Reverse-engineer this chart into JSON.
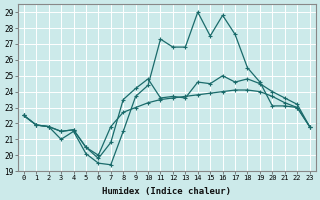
{
  "xlabel": "Humidex (Indice chaleur)",
  "xlim": [
    -0.5,
    23.5
  ],
  "ylim": [
    19,
    29.5
  ],
  "yticks": [
    19,
    20,
    21,
    22,
    23,
    24,
    25,
    26,
    27,
    28,
    29
  ],
  "xticks": [
    0,
    1,
    2,
    3,
    4,
    5,
    6,
    7,
    8,
    9,
    10,
    11,
    12,
    13,
    14,
    15,
    16,
    17,
    18,
    19,
    20,
    21,
    22,
    23
  ],
  "bg_color": "#cceaea",
  "grid_color": "#ffffff",
  "line_color": "#1a6b6b",
  "curve_top_y": [
    22.5,
    21.9,
    21.8,
    21.0,
    21.5,
    20.1,
    19.5,
    19.4,
    21.5,
    23.7,
    24.4,
    27.3,
    26.8,
    26.8,
    29.0,
    27.5,
    28.8,
    27.6,
    25.5,
    24.6,
    23.1,
    23.1,
    23.0,
    21.8
  ],
  "curve_mid_y": [
    22.5,
    21.9,
    21.8,
    21.5,
    21.6,
    20.5,
    19.8,
    20.8,
    23.5,
    24.2,
    24.8,
    23.6,
    23.7,
    23.6,
    24.6,
    24.5,
    25.0,
    24.6,
    24.8,
    24.5,
    24.0,
    23.6,
    23.2,
    21.8
  ],
  "curve_bot_y": [
    22.5,
    21.9,
    21.8,
    21.5,
    21.6,
    20.5,
    20.0,
    21.8,
    22.7,
    23.0,
    23.3,
    23.5,
    23.6,
    23.7,
    23.8,
    23.9,
    24.0,
    24.1,
    24.1,
    24.0,
    23.7,
    23.3,
    23.0,
    21.8
  ],
  "x": [
    0,
    1,
    2,
    3,
    4,
    5,
    6,
    7,
    8,
    9,
    10,
    11,
    12,
    13,
    14,
    15,
    16,
    17,
    18,
    19,
    20,
    21,
    22,
    23
  ],
  "marker_size": 3.5,
  "line_width": 0.9
}
